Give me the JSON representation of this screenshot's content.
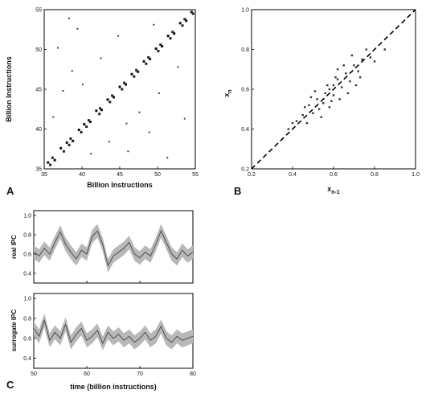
{
  "panel_labels": {
    "a": "A",
    "b": "B",
    "c": "C"
  },
  "chart_data": [
    {
      "id": "A",
      "type": "scatter",
      "title": "",
      "xlabel": "Billion Instructions",
      "ylabel": "Billion Instructions",
      "xlim": [
        35,
        55
      ],
      "ylim": [
        35,
        55
      ],
      "xticks": [
        35,
        40,
        45,
        50,
        55
      ],
      "yticks": [
        35,
        40,
        45,
        50,
        55
      ],
      "grid": false,
      "description_of_marks": "recurrence plot: dense dots concentrated along the main diagonal, sparse scattered dots elsewhere",
      "diagonal_points": [
        [
          35.5,
          35.8
        ],
        [
          36.4,
          36.1
        ],
        [
          37.2,
          37.6
        ],
        [
          38.0,
          38.3
        ],
        [
          38.8,
          38.5
        ],
        [
          39.6,
          39.9
        ],
        [
          40.3,
          40.6
        ],
        [
          41.1,
          40.9
        ],
        [
          41.9,
          42.3
        ],
        [
          42.6,
          42.4
        ],
        [
          43.4,
          43.7
        ],
        [
          44.2,
          44.0
        ],
        [
          45.0,
          45.3
        ],
        [
          45.8,
          45.6
        ],
        [
          46.6,
          46.9
        ],
        [
          47.4,
          47.2
        ],
        [
          48.2,
          48.5
        ],
        [
          49.0,
          48.8
        ],
        [
          49.8,
          50.1
        ],
        [
          50.6,
          50.4
        ],
        [
          51.4,
          51.7
        ],
        [
          52.2,
          52.0
        ],
        [
          53.0,
          53.3
        ],
        [
          53.8,
          53.6
        ],
        [
          54.5,
          54.7
        ]
      ],
      "scattered_points": [
        [
          36.2,
          41.5
        ],
        [
          37.5,
          44.8
        ],
        [
          38.7,
          47.3
        ],
        [
          36.8,
          50.2
        ],
        [
          39.4,
          52.6
        ],
        [
          41.2,
          36.9
        ],
        [
          43.6,
          38.4
        ],
        [
          46.1,
          37.2
        ],
        [
          48.9,
          39.6
        ],
        [
          51.3,
          36.4
        ],
        [
          42.5,
          48.9
        ],
        [
          44.8,
          51.7
        ],
        [
          47.6,
          42.1
        ],
        [
          50.2,
          44.5
        ],
        [
          52.7,
          47.8
        ],
        [
          40.1,
          45.6
        ],
        [
          45.9,
          40.7
        ],
        [
          53.6,
          41.3
        ],
        [
          38.3,
          53.9
        ],
        [
          49.5,
          53.1
        ]
      ]
    },
    {
      "id": "B",
      "type": "scatter",
      "title": "",
      "xlabel": "x_{n-1}",
      "ylabel": "x_n",
      "xlim": [
        0.2,
        1.0
      ],
      "ylim": [
        0.2,
        1.0
      ],
      "xticks": [
        0.2,
        0.4,
        0.6,
        0.8,
        1.0
      ],
      "yticks": [
        0.2,
        0.4,
        0.6,
        0.8,
        1.0
      ],
      "grid": false,
      "reference_line": {
        "style": "dashed",
        "from": [
          0.2,
          0.2
        ],
        "to": [
          1.0,
          1.0
        ]
      },
      "points": [
        [
          0.5,
          0.48
        ],
        [
          0.52,
          0.55
        ],
        [
          0.55,
          0.53
        ],
        [
          0.58,
          0.6
        ],
        [
          0.6,
          0.57
        ],
        [
          0.62,
          0.65
        ],
        [
          0.64,
          0.61
        ],
        [
          0.57,
          0.62
        ],
        [
          0.53,
          0.5
        ],
        [
          0.48,
          0.52
        ],
        [
          0.66,
          0.68
        ],
        [
          0.68,
          0.64
        ],
        [
          0.7,
          0.72
        ],
        [
          0.45,
          0.47
        ],
        [
          0.47,
          0.43
        ],
        [
          0.72,
          0.69
        ],
        [
          0.74,
          0.75
        ],
        [
          0.59,
          0.54
        ],
        [
          0.61,
          0.66
        ],
        [
          0.56,
          0.58
        ],
        [
          0.42,
          0.44
        ],
        [
          0.78,
          0.76
        ],
        [
          0.8,
          0.74
        ],
        [
          0.76,
          0.8
        ],
        [
          0.63,
          0.55
        ],
        [
          0.51,
          0.59
        ],
        [
          0.67,
          0.58
        ],
        [
          0.54,
          0.46
        ],
        [
          0.69,
          0.77
        ],
        [
          0.4,
          0.43
        ],
        [
          0.85,
          0.8
        ],
        [
          0.38,
          0.4
        ],
        [
          0.65,
          0.72
        ],
        [
          0.49,
          0.56
        ],
        [
          0.73,
          0.66
        ],
        [
          0.6,
          0.62
        ],
        [
          0.58,
          0.51
        ],
        [
          0.71,
          0.62
        ],
        [
          0.46,
          0.51
        ],
        [
          0.62,
          0.7
        ]
      ]
    },
    {
      "id": "C-top",
      "type": "line",
      "title": "",
      "xlabel": "",
      "ylabel": "real IPC",
      "xlim": [
        50,
        80
      ],
      "ylim": [
        0.3,
        1.05
      ],
      "xticks": [
        50,
        60,
        70,
        80
      ],
      "yticks": [
        0.4,
        0.6,
        0.8,
        1.0
      ],
      "grid": false,
      "series": [
        {
          "x": [
            50,
            51,
            52,
            53,
            54,
            55,
            56,
            57,
            58,
            59,
            60,
            61,
            62,
            63,
            64,
            65,
            66,
            67,
            68,
            69,
            70,
            71,
            72,
            73,
            74,
            75,
            76,
            77,
            78,
            79,
            80
          ],
          "y": [
            0.62,
            0.58,
            0.66,
            0.6,
            0.72,
            0.83,
            0.7,
            0.62,
            0.55,
            0.64,
            0.6,
            0.78,
            0.84,
            0.7,
            0.48,
            0.58,
            0.62,
            0.66,
            0.72,
            0.6,
            0.56,
            0.62,
            0.58,
            0.7,
            0.84,
            0.72,
            0.6,
            0.55,
            0.64,
            0.58,
            0.62
          ]
        }
      ]
    },
    {
      "id": "C-bottom",
      "type": "line",
      "title": "",
      "xlabel": "time (billion instructions)",
      "ylabel": "surrogate IPC",
      "xlim": [
        50,
        80
      ],
      "ylim": [
        0.3,
        1.05
      ],
      "xticks": [
        50,
        60,
        70,
        80
      ],
      "yticks": [
        0.4,
        0.6,
        0.8,
        1.0
      ],
      "grid": false,
      "series": [
        {
          "x": [
            50,
            51,
            52,
            53,
            54,
            55,
            56,
            57,
            58,
            59,
            60,
            61,
            62,
            63,
            64,
            65,
            66,
            67,
            68,
            69,
            70,
            71,
            72,
            73,
            74,
            75,
            76,
            77,
            78,
            79,
            80
          ],
          "y": [
            0.7,
            0.62,
            0.78,
            0.58,
            0.66,
            0.6,
            0.74,
            0.56,
            0.64,
            0.7,
            0.58,
            0.62,
            0.68,
            0.55,
            0.66,
            0.6,
            0.64,
            0.58,
            0.62,
            0.56,
            0.6,
            0.66,
            0.58,
            0.62,
            0.72,
            0.6,
            0.56,
            0.62,
            0.58,
            0.6,
            0.62
          ]
        }
      ]
    }
  ]
}
